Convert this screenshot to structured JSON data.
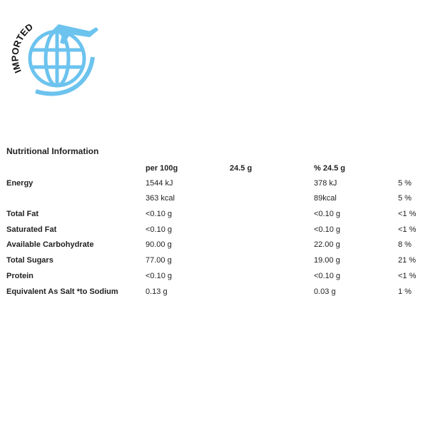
{
  "logo": {
    "text": "IMPORTED"
  },
  "table": {
    "title": "Nutritional Information",
    "header": [
      "per 100g",
      "24.5 g",
      "% 24.5 g"
    ],
    "rows": [
      {
        "label": "Energy",
        "per_100g": "1544 kJ",
        "serving": "378 kJ",
        "percent": "5 %"
      },
      {
        "per_100g": "363 kcal",
        "serving": "89kcal",
        "percent": "5 %"
      },
      {
        "label": "Total Fat",
        "per_100g": "<0.10 g",
        "serving": "<0.10 g",
        "percent": "<1 %"
      },
      {
        "label": "Saturated Fat",
        "per_100g": "<0.10 g",
        "serving": "<0.10 g",
        "percent": "<1 %"
      },
      {
        "label": "Available Carbohydrate",
        "per_100g": "90.00 g",
        "serving": "22.00 g",
        "percent": "8 %"
      },
      {
        "label": "Total Sugars",
        "per_100g": "77.00 g",
        "serving": "19.00 g",
        "percent": "21 %"
      },
      {
        "label": "Protein",
        "per_100g": "<0.10 g",
        "serving": "<0.10 g",
        "percent": "<1 %"
      },
      {
        "label": "Equivalent As Salt *to Sodium",
        "per_100g": "0.13 g",
        "serving": "0.03 g",
        "percent": "1 %"
      }
    ]
  }
}
